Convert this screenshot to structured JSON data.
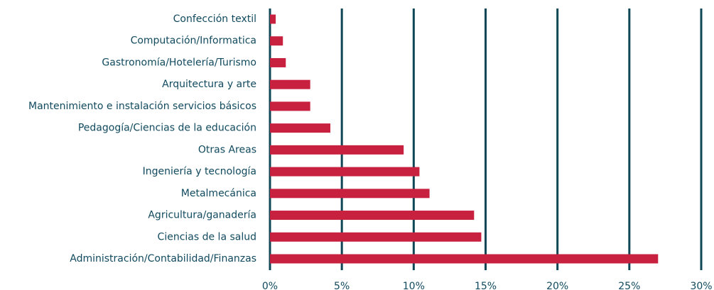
{
  "chart_data": {
    "type": "barh",
    "categories": [
      "Confección textil",
      "Computación/Informatica",
      "Gastronomía/Hotelería/Turismo",
      "Arquitectura y arte",
      "Mantenimiento e instalación servicios básicos",
      "Pedagogía/Ciencias de la educación",
      "Otras Areas",
      "Ingeniería y tecnología",
      "Metalmecánica",
      "Agricultura/ganadería",
      "Ciencias de la salud",
      "Administración/Contabilidad/Finanzas"
    ],
    "values": [
      0.4,
      0.9,
      1.1,
      2.8,
      2.8,
      4.2,
      9.3,
      10.4,
      11.1,
      14.2,
      14.7,
      27.0
    ],
    "color": "#c8203f",
    "xlim": [
      0,
      30
    ],
    "xticks": [
      {
        "value": 0,
        "label": "0%"
      },
      {
        "value": 5,
        "label": "5%"
      },
      {
        "value": 10,
        "label": "10%"
      },
      {
        "value": 15,
        "label": "15%"
      },
      {
        "value": 20,
        "label": "20%"
      },
      {
        "value": 25,
        "label": "25%"
      },
      {
        "value": 30,
        "label": "30%"
      }
    ],
    "grid": true,
    "grid_color": "#0f4757"
  }
}
